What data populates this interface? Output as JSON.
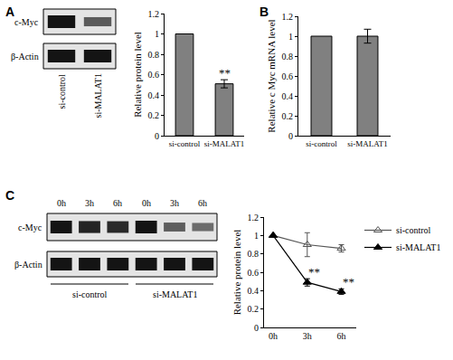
{
  "chart_data": [
    {
      "panel": "A",
      "type": "bar",
      "categories": [
        "si-control",
        "si-MALAT1"
      ],
      "values": [
        1,
        0.51
      ],
      "errors": [
        null,
        0.04
      ],
      "color": "#808080",
      "y_label": "Relative protein level",
      "ylim": [
        0,
        1.2
      ],
      "yticks": [
        0,
        0.2,
        0.4,
        0.6,
        0.8,
        1,
        1.2
      ],
      "grid": false,
      "annotations": [
        {
          "text": "**",
          "category": "si-MALAT1"
        }
      ],
      "blot": {
        "rows": [
          "c-Myc",
          "β-Actin"
        ],
        "lanes": [
          "si-control",
          "si-MALAT1"
        ]
      }
    },
    {
      "panel": "B",
      "type": "bar",
      "categories": [
        "si-control",
        "si-MALAT1"
      ],
      "values": [
        1,
        1.0
      ],
      "errors": [
        null,
        0.07
      ],
      "color": "#808080",
      "y_label": "Relative c Myc mRNA level",
      "ylim": [
        0,
        1.2
      ],
      "yticks": [
        0,
        0.2,
        0.4,
        0.6,
        0.8,
        1,
        1.2
      ],
      "grid": false
    },
    {
      "panel": "C",
      "type": "line",
      "categories": [
        "0h",
        "3h",
        "6h"
      ],
      "series": [
        {
          "name": "si-control",
          "color": "#555555",
          "marker": "open triangle",
          "values": [
            1,
            0.9,
            0.86
          ],
          "errors": [
            null,
            0.13,
            0.04
          ]
        },
        {
          "name": "si-MALAT1",
          "color": "#000000",
          "marker": "triangle",
          "values": [
            1,
            0.49,
            0.39
          ],
          "errors": [
            null,
            0.04,
            0.03
          ]
        }
      ],
      "y_label": "Relative protein level",
      "ylim": [
        0,
        1.2
      ],
      "yticks": [
        0,
        0.2,
        0.4,
        0.6,
        0.8,
        1,
        1.2
      ],
      "grid": false,
      "legend": "right",
      "annotations": [
        {
          "text": "**",
          "category": "3h",
          "series": "si-MALAT1"
        },
        {
          "text": "**",
          "category": "6h",
          "series": "si-MALAT1"
        }
      ],
      "blot": {
        "rows": [
          "c-Myc",
          "β-Actin"
        ],
        "lanes": [
          "0h",
          "3h",
          "6h",
          "0h",
          "3h",
          "6h"
        ],
        "groups": [
          "si-control",
          "si-MALAT1"
        ]
      }
    }
  ]
}
